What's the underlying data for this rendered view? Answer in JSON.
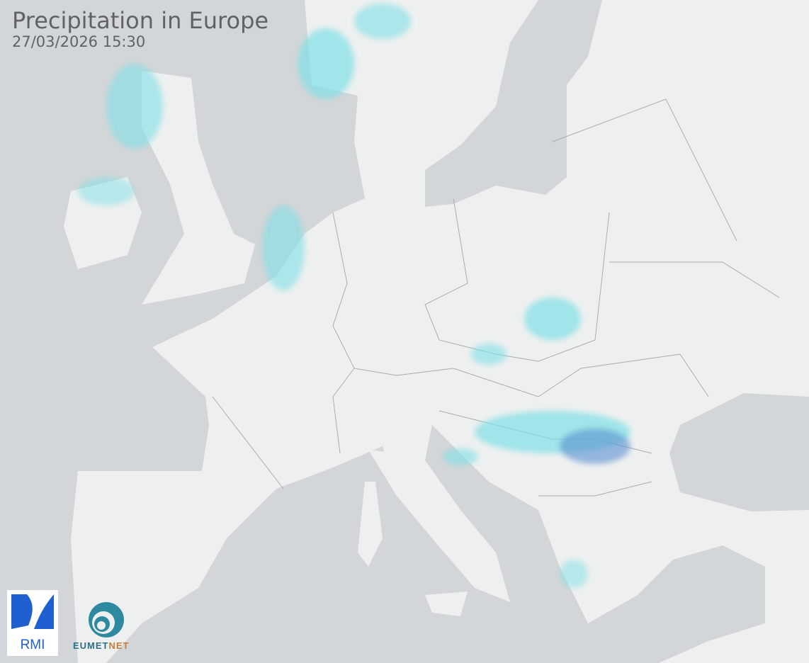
{
  "header": {
    "title": "Precipitation in Europe",
    "timestamp": "27/03/2026 15:30"
  },
  "logos": {
    "rmi": "RMI",
    "eumetnet_a": "EUMET",
    "eumetnet_b": "NET"
  },
  "colors": {
    "sea": "#d3d6d8",
    "land": "#eef0f0",
    "border": "#a9acae",
    "light_precip": "#7fe0e6",
    "moderate_precip": "#5a8fd0"
  }
}
